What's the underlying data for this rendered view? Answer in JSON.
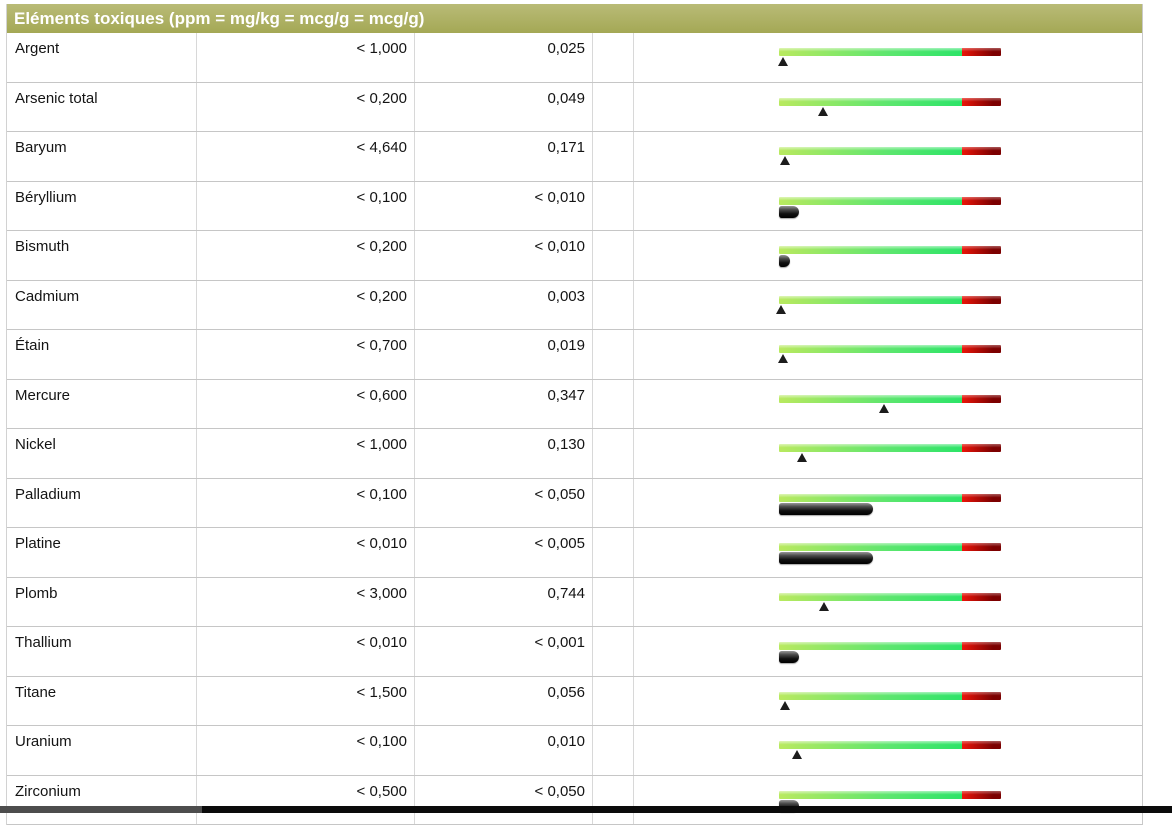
{
  "table": {
    "title": "Eléments toxiques (ppm = mg/kg = mcg/g = mcg/g)",
    "columns": {
      "element": "element-name",
      "detection_limit": "detection-limit",
      "measured_value": "measured-value",
      "gauge": "result-gauge"
    },
    "rows": [
      {
        "name": "Argent",
        "limit": "< 1,000",
        "value": "0,025",
        "marker": "triangle",
        "fraction": 0.025
      },
      {
        "name": "Arsenic total",
        "limit": "< 0,200",
        "value": "0,049",
        "marker": "triangle",
        "fraction": 0.245
      },
      {
        "name": "Baryum",
        "limit": "< 4,640",
        "value": "0,171",
        "marker": "triangle",
        "fraction": 0.037
      },
      {
        "name": "Béryllium",
        "limit": "< 0,100",
        "value": "< 0,010",
        "marker": "capsule",
        "fraction": 0.1
      },
      {
        "name": "Bismuth",
        "limit": "< 0,200",
        "value": "< 0,010",
        "marker": "capsule",
        "fraction": 0.05
      },
      {
        "name": "Cadmium",
        "limit": "< 0,200",
        "value": "0,003",
        "marker": "triangle",
        "fraction": 0.015
      },
      {
        "name": "Étain",
        "limit": "< 0,700",
        "value": "0,019",
        "marker": "triangle",
        "fraction": 0.027
      },
      {
        "name": "Mercure",
        "limit": "< 0,600",
        "value": "0,347",
        "marker": "triangle",
        "fraction": 0.578
      },
      {
        "name": "Nickel",
        "limit": "< 1,000",
        "value": "0,130",
        "marker": "triangle",
        "fraction": 0.13
      },
      {
        "name": "Palladium",
        "limit": "< 0,100",
        "value": "< 0,050",
        "marker": "capsule",
        "fraction": 0.5
      },
      {
        "name": "Platine",
        "limit": "< 0,010",
        "value": "< 0,005",
        "marker": "capsule",
        "fraction": 0.5
      },
      {
        "name": "Plomb",
        "limit": "< 3,000",
        "value": "0,744",
        "marker": "triangle",
        "fraction": 0.248
      },
      {
        "name": "Thallium",
        "limit": "< 0,010",
        "value": "< 0,001",
        "marker": "capsule",
        "fraction": 0.1
      },
      {
        "name": "Titane",
        "limit": "< 1,500",
        "value": "0,056",
        "marker": "triangle",
        "fraction": 0.037
      },
      {
        "name": "Uranium",
        "limit": "< 0,100",
        "value": "0,010",
        "marker": "triangle",
        "fraction": 0.1
      },
      {
        "name": "Zirconium",
        "limit": "< 0,500",
        "value": "< 0,050",
        "marker": "capsule",
        "fraction": 0.1
      }
    ]
  },
  "colors": {
    "header_top": "#b9bb77",
    "header_bottom": "#a4a855",
    "header_text": "#ffffff",
    "gauge_green_start": "#b9e95f",
    "gauge_green_mid": "#5ce66e",
    "gauge_green_end": "#2ce468",
    "gauge_red_start": "#ea1509",
    "gauge_red_end": "#7c0000",
    "marker": "#1c1c1c",
    "bottom_edge_left": "#4d4d4d",
    "bottom_edge_dark": "#0b0b0b"
  }
}
